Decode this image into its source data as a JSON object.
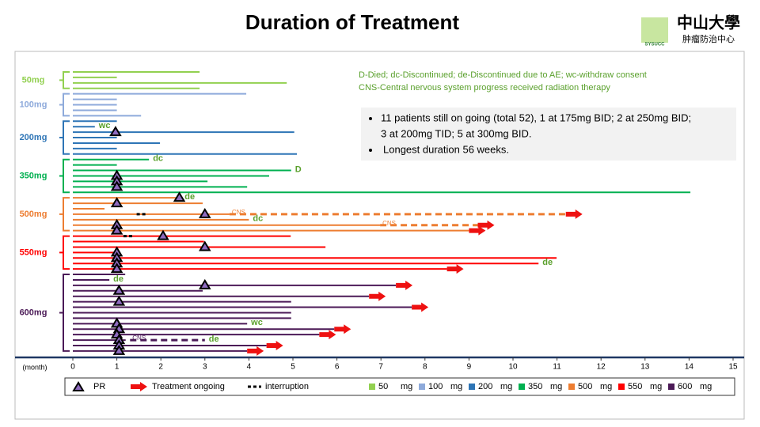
{
  "chart_data": {
    "type": "swimmer",
    "title": "Duration of Treatment",
    "logo": {
      "name": "中山大學",
      "sub": "肿瘤防治中心",
      "abbr": "SYSUCC"
    },
    "xlabel": "(month)",
    "xlim": [
      0,
      15
    ],
    "xticks": [
      0,
      1,
      2,
      3,
      4,
      5,
      6,
      7,
      8,
      9,
      10,
      11,
      12,
      13,
      14,
      15
    ],
    "notes": [
      "D-Died;   dc-Discontinued;   de-Discontinued due to AE;   wc-withdraw consent",
      "CNS-Central  nervous system progress received radiation therapy"
    ],
    "bullets": [
      "11 patients still on going (total 52), 1 at 175mg BID; 2 at 250mg BID;",
      "3 at 200mg TID; 5 at 300mg BID.",
      "Longest duration 56 weeks."
    ],
    "legend": {
      "pr": "PR",
      "ongoing": "Treatment ongoing",
      "interruption": "interruption",
      "unit": "mg"
    },
    "groups": [
      {
        "name": "50mg",
        "legend": "50",
        "color": "#92d050",
        "rows": [
          {
            "end": 2.88
          },
          {
            "end": 1.0
          },
          {
            "end": 4.86
          },
          {
            "end": 2.88
          }
        ]
      },
      {
        "name": "100mg",
        "legend": "100",
        "color": "#8eaadb",
        "rows": [
          {
            "end": 3.94
          },
          {
            "end": 1.0
          },
          {
            "end": 1.0
          },
          {
            "end": 1.0
          },
          {
            "end": 1.55
          }
        ]
      },
      {
        "name": "200mg",
        "legend": "200",
        "color": "#2e75b6",
        "rows": [
          {
            "end": 1.0
          },
          {
            "end": 0.5,
            "note": "wc"
          },
          {
            "end": 5.03,
            "pr": 0.97
          },
          {
            "end": 1.0
          },
          {
            "end": 1.98
          },
          {
            "end": 1.0
          },
          {
            "end": 5.09
          }
        ]
      },
      {
        "name": "350mg",
        "legend": "350",
        "color": "#00b050",
        "rows": [
          {
            "end": 1.73,
            "note": "dc"
          },
          {
            "end": 1.0
          },
          {
            "end": 4.96,
            "note": "D"
          },
          {
            "end": 4.46,
            "pr": 1.0
          },
          {
            "end": 3.06,
            "pr": 1.0
          },
          {
            "end": 3.96,
            "pr": 1.0
          },
          {
            "end": 14.03
          }
        ]
      },
      {
        "name": "500mg",
        "legend": "500",
        "color": "#ed7d31",
        "rows": [
          {
            "end": 2.45,
            "pr": 2.42,
            "note": "de"
          },
          {
            "end": 2.95,
            "pr": 1.0
          },
          {
            "end": 0.72
          },
          {
            "end": 3.56,
            "pr": 3.0,
            "gap": [
              1.45,
              1.7
            ],
            "dashed": [
              3.56,
              11.2
            ],
            "dash_label": "CNS",
            "ongoing": true
          },
          {
            "end": 4.0,
            "note": "dc"
          },
          {
            "end": 6.98,
            "pr": 1.0,
            "dashed": [
              6.98,
              9.2
            ],
            "dash_label": "CNS",
            "ongoing": true
          },
          {
            "end": 9.0,
            "pr": 1.0,
            "ongoing": true
          }
        ]
      },
      {
        "name": "550mg",
        "legend": "550",
        "color": "#ff0000",
        "rows": [
          {
            "end": 4.95,
            "pr": 2.05,
            "gap": [
              1.15,
              1.4
            ]
          },
          {
            "end": 2.98
          },
          {
            "end": 5.74,
            "pr": 3.0
          },
          {
            "end": 1.0,
            "pr": 1.0
          },
          {
            "end": 10.99,
            "pr": 1.0
          },
          {
            "end": 10.58,
            "pr": 1.0,
            "note": "de"
          },
          {
            "end": 8.5,
            "pr": 1.0,
            "ongoing": true
          }
        ]
      },
      {
        "name": "600mg",
        "legend": "600",
        "color": "#4b1a57",
        "rows": [
          {
            "end": 1.19
          },
          {
            "end": 0.83,
            "note": "de"
          },
          {
            "end": 7.34,
            "pr": 3.0,
            "ongoing": true
          },
          {
            "end": 2.95,
            "pr": 1.05
          },
          {
            "end": 6.73,
            "ongoing": true
          },
          {
            "end": 4.96,
            "pr": 1.05
          },
          {
            "end": 7.7,
            "ongoing": true
          },
          {
            "end": 4.96
          },
          {
            "end": 4.96
          },
          {
            "end": 3.96,
            "pr": 1.0,
            "note": "wc"
          },
          {
            "end": 5.94,
            "pr": 1.05,
            "ongoing": true
          },
          {
            "end": 5.6,
            "pr": 1.0,
            "ongoing": true
          },
          {
            "end": 1.2,
            "pr": 1.05,
            "dashed": [
              1.3,
              3.0
            ],
            "dash_label": "CNS",
            "note": "de"
          },
          {
            "end": 4.4,
            "pr": 1.05,
            "ongoing": true
          },
          {
            "end": 3.96,
            "pr": 1.05,
            "ongoing": true
          }
        ]
      }
    ]
  }
}
